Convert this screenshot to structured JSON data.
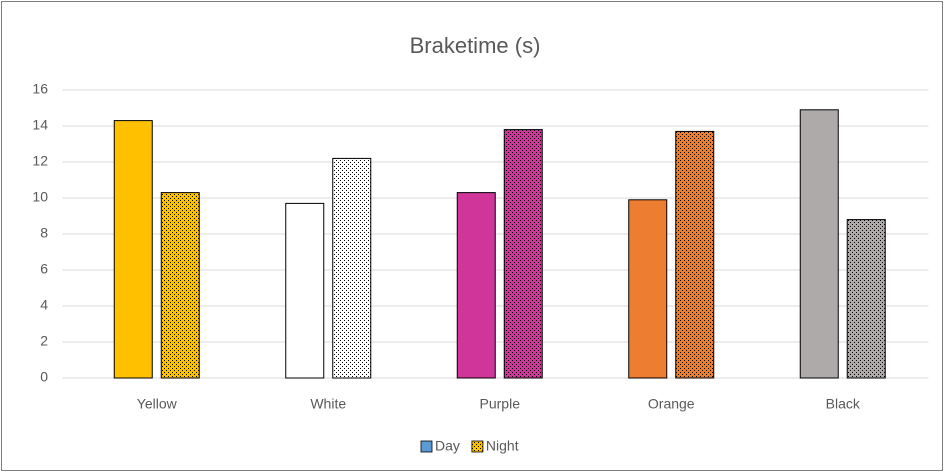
{
  "chart_data": {
    "type": "bar",
    "title": "Braketime (s)",
    "categories": [
      "Yellow",
      "White",
      "Purple",
      "Orange",
      "Black"
    ],
    "category_colors": [
      "#ffc000",
      "#ffffff",
      "#d0359a",
      "#ed7d31",
      "#aeaaaa"
    ],
    "series": [
      {
        "name": "Day",
        "color": "#5b9bd5",
        "pattern": "solid",
        "values": [
          14.3,
          9.7,
          10.3,
          9.9,
          14.9
        ]
      },
      {
        "name": "Night",
        "color": "#ffc000",
        "pattern": "dots",
        "values": [
          10.3,
          12.2,
          13.8,
          13.7,
          8.8
        ]
      }
    ],
    "ylim": [
      0,
      16
    ],
    "yticks": [
      0,
      2,
      4,
      6,
      8,
      10,
      12,
      14,
      16
    ],
    "grid": true,
    "legend": "bottom"
  }
}
